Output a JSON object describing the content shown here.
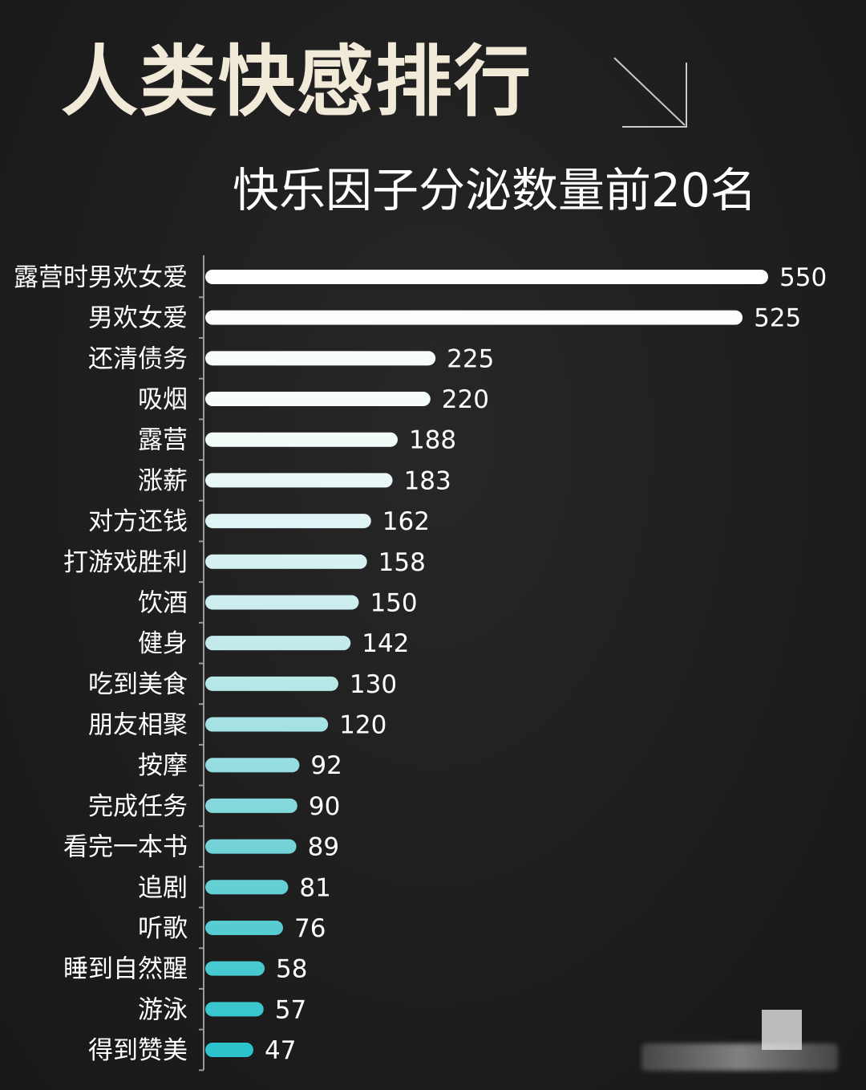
{
  "poster": {
    "title": "人类快感排行",
    "subtitle": "快乐因子分泌数量前20名",
    "title_icon": "arrow-down-right-icon"
  },
  "colors": {
    "background": "#1e1e1e",
    "title": "#f1ead8",
    "bar_top": "#ffffff",
    "bar_bottom": "#2cc3cc",
    "axis": "#9a9a9a"
  },
  "chart_data": {
    "type": "bar",
    "orientation": "horizontal",
    "title": "人类快感排行",
    "subtitle": "快乐因子分泌数量前20名",
    "xlabel": "",
    "ylabel": "",
    "xlim": [
      0,
      550
    ],
    "grid": false,
    "legend": "none",
    "categories": [
      "露营时男欢女爱",
      "男欢女爱",
      "还清债务",
      "吸烟",
      "露营",
      "涨薪",
      "对方还钱",
      "打游戏胜利",
      "饮酒",
      "健身",
      "吃到美食",
      "朋友相聚",
      "按摩",
      "完成任务",
      "看完一本书",
      "追剧",
      "听歌",
      "睡到自然醒",
      "游泳",
      "得到赞美"
    ],
    "values": [
      550,
      525,
      225,
      220,
      188,
      183,
      162,
      158,
      150,
      142,
      130,
      120,
      92,
      90,
      89,
      81,
      76,
      58,
      57,
      47
    ]
  }
}
